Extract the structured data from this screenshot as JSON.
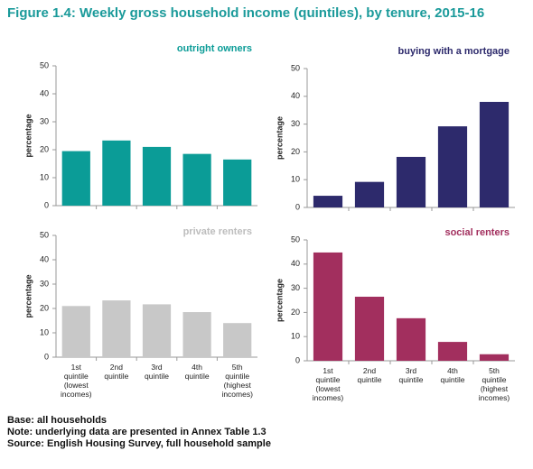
{
  "title": "Figure 1.4: Weekly gross household income (quintiles), by tenure, 2015-16",
  "notes": [
    "Base: all households",
    "Note: underlying data are presented in Annex Table 1.3",
    "Source: English Housing Survey, full household sample"
  ],
  "chart_data": [
    {
      "type": "bar",
      "title": "outright owners",
      "ylabel": "percentage",
      "color": "#0b9c97",
      "categories": [
        null,
        null,
        null,
        null,
        null
      ],
      "values": [
        19.5,
        23.3,
        21,
        18.5,
        16.5
      ],
      "ylim": [
        0,
        50
      ],
      "yticks": [
        0,
        10,
        20,
        30,
        40,
        50
      ]
    },
    {
      "type": "bar",
      "title": "buying with a mortgage",
      "ylabel": "percentage",
      "color": "#2d2a6c",
      "categories": [
        null,
        null,
        null,
        null,
        null
      ],
      "values": [
        4.2,
        9.2,
        18.2,
        29.2,
        38
      ],
      "ylim": [
        0,
        50
      ],
      "yticks": [
        0,
        10,
        20,
        30,
        40,
        50
      ]
    },
    {
      "type": "bar",
      "title": "private renters",
      "ylabel": "percentage",
      "color": "#c8c8c8",
      "categories": [
        "1st\nquintile\n(lowest\nincomes)",
        "2nd\nquintile",
        "3rd\nquintile",
        "4th\nquintile",
        "5th\nquintile\n(highest\nincomes)"
      ],
      "values": [
        21,
        23.3,
        21.7,
        18.5,
        14
      ],
      "ylim": [
        0,
        50
      ],
      "yticks": [
        0,
        10,
        20,
        30,
        40,
        50
      ]
    },
    {
      "type": "bar",
      "title": "social renters",
      "ylabel": "percentage",
      "color": "#a22f5e",
      "categories": [
        "1st\nquintile\n(lowest\nincomes)",
        "2nd\nquintile",
        "3rd\nquintile",
        "4th\nquintile",
        "5th\nquintile\n(highest\nincomes)"
      ],
      "values": [
        44.8,
        26.5,
        17.6,
        7.8,
        2.7
      ],
      "ylim": [
        0,
        50
      ],
      "yticks": [
        0,
        10,
        20,
        30,
        40,
        50
      ]
    }
  ]
}
